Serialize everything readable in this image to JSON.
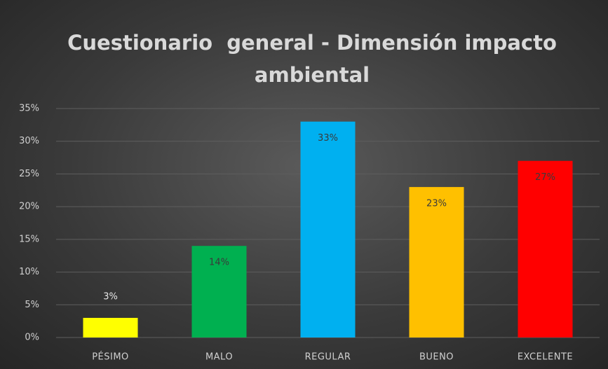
{
  "chart_data": {
    "type": "bar",
    "title": "Cuestionario  general - Dimensión impacto ambiental",
    "categories": [
      "PÉSIMO",
      "MALO",
      "REGULAR",
      "BUENO",
      "EXCELENTE"
    ],
    "values": [
      3,
      14,
      33,
      23,
      27
    ],
    "value_labels": [
      "3%",
      "14%",
      "33%",
      "23%",
      "27%"
    ],
    "colors": [
      "#ffff00",
      "#00b050",
      "#00b0f0",
      "#ffc000",
      "#ff0000"
    ],
    "ylim": [
      0,
      35
    ],
    "yticks": [
      {
        "value": 0,
        "label": "0%"
      },
      {
        "value": 5,
        "label": "5%"
      },
      {
        "value": 10,
        "label": "10%"
      },
      {
        "value": 15,
        "label": "15%"
      },
      {
        "value": 20,
        "label": "20%"
      },
      {
        "value": 25,
        "label": "25%"
      },
      {
        "value": 30,
        "label": "30%"
      },
      {
        "value": 35,
        "label": "35%"
      }
    ],
    "grid": true
  }
}
